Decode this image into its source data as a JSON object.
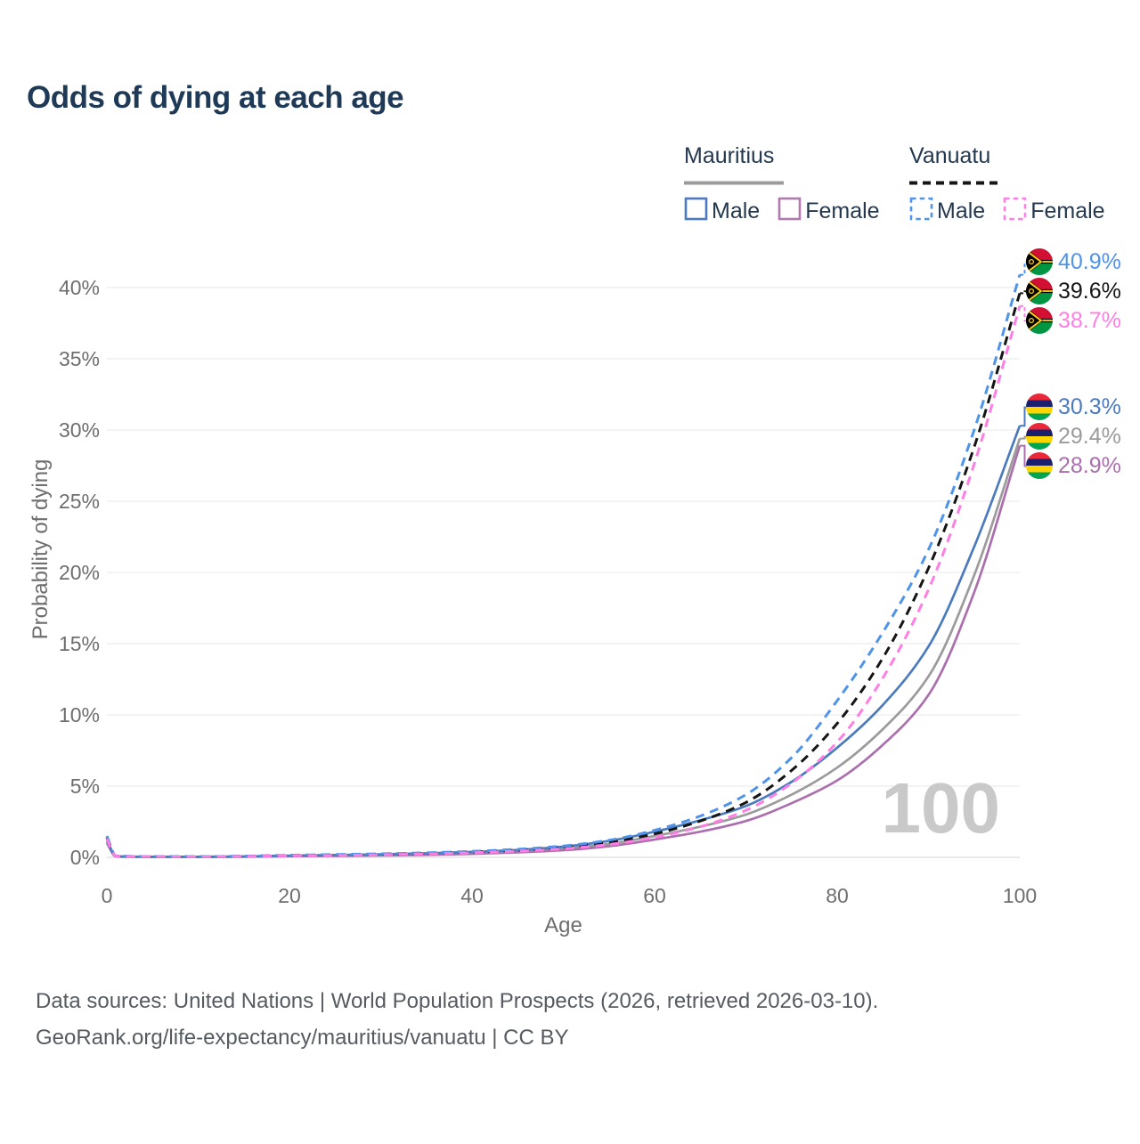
{
  "title": "Odds of dying at each age",
  "watermark": "100",
  "legend": {
    "groups": [
      {
        "label": "Mauritius",
        "line_color": "#9b9b9b",
        "line_dashed": false,
        "items": [
          {
            "label": "Male",
            "color": "#4b7bbe",
            "dashed": false
          },
          {
            "label": "Female",
            "color": "#b07ab0",
            "dashed": false
          }
        ]
      },
      {
        "label": "Vanuatu",
        "line_color": "#151515",
        "line_dashed": true,
        "items": [
          {
            "label": "Male",
            "color": "#4f93ea",
            "dashed": true
          },
          {
            "label": "Female",
            "color": "#ff7ee3",
            "dashed": true
          }
        ]
      }
    ]
  },
  "footer": {
    "line1": "Data sources: United Nations | World Population Prospects (2026, retrieved 2026-03-10).",
    "line2": "GeoRank.org/life-expectancy/mauritius/vanuatu | CC BY"
  },
  "chart_data": {
    "type": "line",
    "title": "Odds of dying at each age",
    "xlabel": "Age",
    "ylabel": "Probability of dying",
    "x_ticks": [
      "0",
      "20",
      "40",
      "60",
      "80",
      "100"
    ],
    "y_ticks": [
      "0%",
      "5%",
      "10%",
      "15%",
      "20%",
      "25%",
      "30%",
      "35%",
      "40%"
    ],
    "xlim": [
      0,
      100
    ],
    "ylim_pct": [
      0,
      42
    ],
    "grid": "horizontal-only",
    "legend_position": "top-right",
    "ages": [
      0,
      1,
      5,
      10,
      15,
      20,
      25,
      30,
      35,
      40,
      45,
      50,
      55,
      60,
      65,
      70,
      75,
      80,
      85,
      90,
      95,
      100
    ],
    "series": [
      {
        "name": "Vanuatu Male",
        "country": "Vanuatu",
        "sex": "Male",
        "color": "#4f93ea",
        "dashed": true,
        "flag": "vanuatu",
        "end_label": "40.9%",
        "values": [
          1.5,
          0.1,
          0.06,
          0.05,
          0.09,
          0.15,
          0.2,
          0.25,
          0.32,
          0.42,
          0.57,
          0.8,
          1.2,
          1.9,
          2.9,
          4.4,
          7.0,
          11.0,
          15.8,
          21.6,
          30.0,
          40.9
        ]
      },
      {
        "name": "Vanuatu Both sexes",
        "country": "Vanuatu",
        "sex": "Both sexes",
        "color": "#151515",
        "dashed": true,
        "flag": "vanuatu",
        "end_label": "39.6%",
        "values": [
          1.4,
          0.09,
          0.055,
          0.045,
          0.08,
          0.13,
          0.17,
          0.22,
          0.28,
          0.37,
          0.5,
          0.7,
          1.05,
          1.65,
          2.55,
          3.85,
          6.1,
          9.4,
          14.0,
          20.3,
          28.8,
          39.6
        ]
      },
      {
        "name": "Vanuatu Female",
        "country": "Vanuatu",
        "sex": "Female",
        "color": "#ff7ee3",
        "dashed": true,
        "flag": "vanuatu",
        "end_label": "38.7%",
        "values": [
          1.3,
          0.08,
          0.05,
          0.04,
          0.07,
          0.11,
          0.14,
          0.18,
          0.24,
          0.32,
          0.43,
          0.6,
          0.9,
          1.4,
          2.15,
          3.3,
          5.2,
          8.1,
          12.6,
          18.8,
          27.6,
          38.7
        ]
      },
      {
        "name": "Mauritius Male",
        "country": "Mauritius",
        "sex": "Male",
        "color": "#4b7bbe",
        "dashed": false,
        "flag": "mauritius",
        "end_label": "30.3%",
        "values": [
          1.2,
          0.07,
          0.04,
          0.035,
          0.06,
          0.12,
          0.16,
          0.21,
          0.28,
          0.38,
          0.52,
          0.75,
          1.15,
          1.8,
          2.6,
          3.6,
          5.3,
          7.7,
          10.7,
          14.8,
          21.8,
          30.3
        ]
      },
      {
        "name": "Mauritius Both sexes",
        "country": "Mauritius",
        "sex": "Both sexes",
        "color": "#9b9b9b",
        "dashed": false,
        "flag": "mauritius",
        "end_label": "29.4%",
        "values": [
          1.1,
          0.06,
          0.035,
          0.03,
          0.05,
          0.1,
          0.13,
          0.17,
          0.23,
          0.31,
          0.43,
          0.62,
          0.95,
          1.5,
          2.15,
          3.0,
          4.4,
          6.3,
          9.0,
          12.7,
          19.8,
          29.4
        ]
      },
      {
        "name": "Mauritius Female",
        "country": "Mauritius",
        "sex": "Female",
        "color": "#ab6fae",
        "dashed": false,
        "flag": "mauritius",
        "end_label": "28.9%",
        "values": [
          1.0,
          0.05,
          0.03,
          0.025,
          0.04,
          0.08,
          0.1,
          0.13,
          0.17,
          0.24,
          0.35,
          0.5,
          0.78,
          1.25,
          1.8,
          2.55,
          3.8,
          5.4,
          7.9,
          11.4,
          18.6,
          28.9
        ]
      }
    ]
  }
}
